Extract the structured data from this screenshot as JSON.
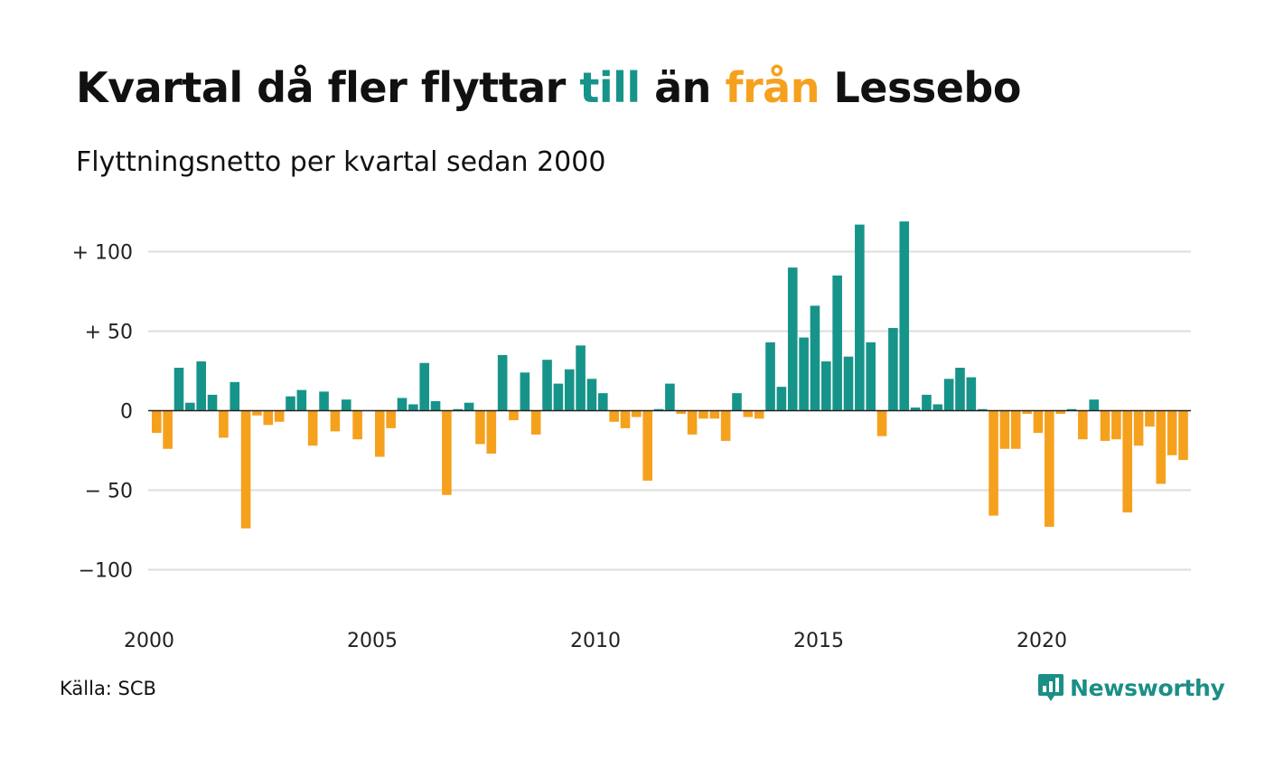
{
  "title": {
    "parts": [
      "Kvartal då fler flyttar ",
      "till",
      " än ",
      "från",
      " Lessebo"
    ]
  },
  "subtitle": "Flyttningsnetto per kvartal sedan 2000",
  "source": "Källa: SCB",
  "brand": {
    "name": "Newsworthy",
    "icon": "bar-chart-badge-icon"
  },
  "colors": {
    "positive": "#17948a",
    "negative": "#f5a11d",
    "grid": "#dddddd",
    "zero": "#222222"
  },
  "chart_data": {
    "type": "bar",
    "start_year": 2000,
    "ylim": [
      -130,
      120
    ],
    "yticks": [
      100,
      50,
      0,
      -50,
      -100
    ],
    "ytick_labels": [
      "+ 100",
      "+  50",
      "0",
      "− 50",
      "−100"
    ],
    "xticks": [
      2000,
      2005,
      2010,
      2015,
      2020
    ],
    "xtick_labels": [
      "2000",
      "2005",
      "2010",
      "2015",
      "2020"
    ],
    "grid": true,
    "values": [
      -14,
      -24,
      27,
      5,
      31,
      10,
      -17,
      18,
      -74,
      -3,
      -9,
      -7,
      9,
      13,
      -22,
      12,
      -13,
      7,
      -18,
      0,
      -29,
      -11,
      8,
      4,
      30,
      6,
      -53,
      1,
      5,
      -21,
      -27,
      35,
      -6,
      24,
      -15,
      32,
      17,
      26,
      41,
      20,
      11,
      -7,
      -11,
      -4,
      -44,
      1,
      17,
      -2,
      -15,
      -5,
      -5,
      -19,
      11,
      -4,
      -5,
      43,
      15,
      90,
      46,
      66,
      31,
      85,
      34,
      117,
      43,
      -16,
      52,
      119,
      2,
      10,
      4,
      20,
      27,
      21,
      1,
      -66,
      -24,
      -24,
      -2,
      -14,
      -73,
      -2,
      1,
      -18,
      7,
      -19,
      -18,
      -64,
      -22,
      -10,
      -46,
      -28,
      -31
    ]
  }
}
